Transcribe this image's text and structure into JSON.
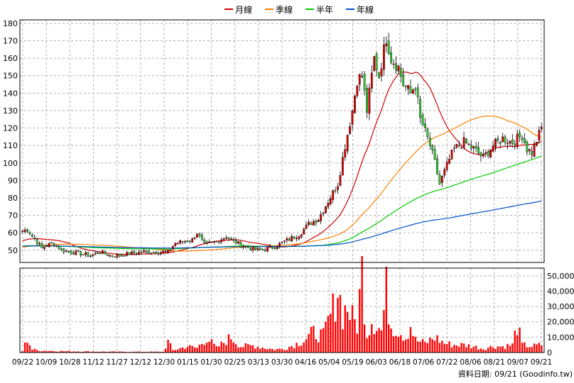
{
  "chart_data": {
    "type": "candlestick",
    "legend": [
      {
        "name": "月線",
        "color": "#cc0000"
      },
      {
        "name": "季線",
        "color": "#ff8000"
      },
      {
        "name": "半年",
        "color": "#00cc00"
      },
      {
        "name": "年線",
        "color": "#0050c8"
      }
    ],
    "price_axis": {
      "ylim": [
        43,
        182
      ],
      "ticks": [
        50,
        60,
        70,
        80,
        90,
        100,
        110,
        120,
        130,
        140,
        150,
        160,
        170,
        180
      ]
    },
    "volume_axis": {
      "ylim": [
        0,
        55000
      ],
      "ticks": [
        0,
        10000,
        20000,
        30000,
        40000,
        50000
      ],
      "tick_labels": [
        "0",
        "10,000",
        "20,000",
        "30,000",
        "40,000",
        "50,000"
      ]
    },
    "x_tick_labels": [
      "09/22",
      "10/09",
      "10/28",
      "11/12",
      "11/27",
      "12/12",
      "12/30",
      "01/15",
      "01/30",
      "02/25",
      "03/13",
      "03/30",
      "04/16",
      "05/04",
      "05/19",
      "06/03",
      "06/18",
      "07/06",
      "07/22",
      "08/06",
      "08/21",
      "09/07",
      "09/21"
    ],
    "price_keypoints": [
      [
        0,
        61
      ],
      [
        2,
        62
      ],
      [
        4,
        58
      ],
      [
        6,
        55
      ],
      [
        8,
        51
      ],
      [
        10,
        53
      ],
      [
        13,
        54
      ],
      [
        16,
        50
      ],
      [
        20,
        49
      ],
      [
        24,
        48
      ],
      [
        28,
        47
      ],
      [
        32,
        49
      ],
      [
        36,
        47
      ],
      [
        40,
        47
      ],
      [
        44,
        48
      ],
      [
        50,
        49
      ],
      [
        55,
        49
      ],
      [
        60,
        49
      ],
      [
        63,
        54
      ],
      [
        66,
        55
      ],
      [
        70,
        56
      ],
      [
        72,
        60
      ],
      [
        75,
        53
      ],
      [
        80,
        55
      ],
      [
        84,
        58
      ],
      [
        86,
        56
      ],
      [
        90,
        53
      ],
      [
        94,
        51
      ],
      [
        98,
        50
      ],
      [
        104,
        52
      ],
      [
        108,
        55
      ],
      [
        114,
        59
      ],
      [
        118,
        65
      ],
      [
        122,
        68
      ],
      [
        126,
        78
      ],
      [
        130,
        88
      ],
      [
        133,
        110
      ],
      [
        136,
        130
      ],
      [
        138,
        148
      ],
      [
        140,
        150
      ],
      [
        142,
        130
      ],
      [
        145,
        160
      ],
      [
        147,
        150
      ],
      [
        150,
        172
      ],
      [
        152,
        160
      ],
      [
        155,
        155
      ],
      [
        157,
        145
      ],
      [
        160,
        140
      ],
      [
        162,
        145
      ],
      [
        164,
        125
      ],
      [
        166,
        118
      ],
      [
        168,
        110
      ],
      [
        170,
        100
      ],
      [
        172,
        88
      ],
      [
        174,
        95
      ],
      [
        176,
        102
      ],
      [
        178,
        108
      ],
      [
        182,
        112
      ],
      [
        186,
        108
      ],
      [
        190,
        103
      ],
      [
        194,
        110
      ],
      [
        198,
        114
      ],
      [
        202,
        112
      ],
      [
        206,
        116
      ],
      [
        208,
        108
      ],
      [
        210,
        106
      ],
      [
        212,
        113
      ],
      [
        214,
        120
      ]
    ],
    "volume_keypoints": [
      [
        0,
        1000
      ],
      [
        2,
        9000
      ],
      [
        4,
        2000
      ],
      [
        8,
        1200
      ],
      [
        20,
        800
      ],
      [
        40,
        500
      ],
      [
        58,
        500
      ],
      [
        60,
        7000
      ],
      [
        62,
        1500
      ],
      [
        68,
        4000
      ],
      [
        72,
        3000
      ],
      [
        76,
        9500
      ],
      [
        80,
        3000
      ],
      [
        86,
        10000
      ],
      [
        90,
        4000
      ],
      [
        95,
        4500
      ],
      [
        100,
        3000
      ],
      [
        104,
        2000
      ],
      [
        108,
        2500
      ],
      [
        112,
        5000
      ],
      [
        116,
        8000
      ],
      [
        120,
        13000
      ],
      [
        124,
        11000
      ],
      [
        128,
        28000
      ],
      [
        130,
        43000
      ],
      [
        132,
        25000
      ],
      [
        134,
        30000
      ],
      [
        136,
        22000
      ],
      [
        138,
        18000
      ],
      [
        140,
        53000
      ],
      [
        142,
        12000
      ],
      [
        144,
        22000
      ],
      [
        146,
        18000
      ],
      [
        148,
        14000
      ],
      [
        150,
        40000
      ],
      [
        152,
        18000
      ],
      [
        155,
        15000
      ],
      [
        158,
        10000
      ],
      [
        160,
        18000
      ],
      [
        162,
        8000
      ],
      [
        166,
        6000
      ],
      [
        170,
        10000
      ],
      [
        174,
        6000
      ],
      [
        178,
        5000
      ],
      [
        182,
        5000
      ],
      [
        186,
        4000
      ],
      [
        190,
        2500
      ],
      [
        194,
        4000
      ],
      [
        198,
        4000
      ],
      [
        202,
        5000
      ],
      [
        204,
        18000
      ],
      [
        206,
        5000
      ],
      [
        210,
        4000
      ],
      [
        214,
        5000
      ]
    ],
    "grid": true,
    "source_label": "資料日期: 09/21 (Goodinfo.tw)"
  }
}
